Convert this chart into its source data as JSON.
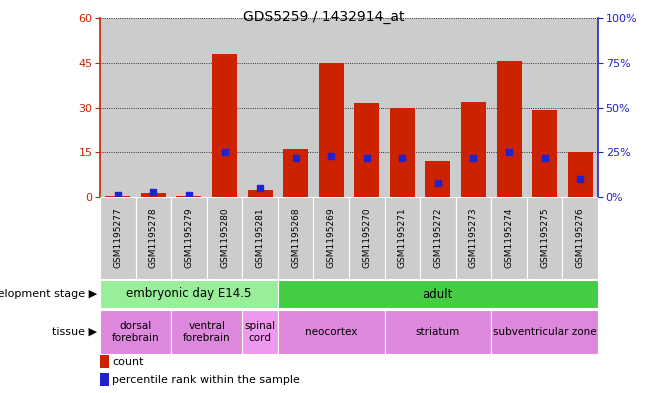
{
  "title": "GDS5259 / 1432914_at",
  "samples": [
    "GSM1195277",
    "GSM1195278",
    "GSM1195279",
    "GSM1195280",
    "GSM1195281",
    "GSM1195268",
    "GSM1195269",
    "GSM1195270",
    "GSM1195271",
    "GSM1195272",
    "GSM1195273",
    "GSM1195274",
    "GSM1195275",
    "GSM1195276"
  ],
  "count": [
    0.5,
    1.5,
    0.5,
    48,
    2.5,
    16,
    45,
    31.5,
    30,
    12,
    32,
    45.5,
    29,
    15
  ],
  "percentile": [
    1,
    3,
    1,
    25,
    5,
    22,
    23,
    22,
    22,
    8,
    22,
    25,
    22,
    10
  ],
  "left_ylim": [
    0,
    60
  ],
  "left_yticks": [
    0,
    15,
    30,
    45,
    60
  ],
  "right_ylim": [
    0,
    100
  ],
  "right_yticks": [
    0,
    25,
    50,
    75,
    100
  ],
  "bar_color": "#cc2200",
  "dot_color": "#2222cc",
  "col_bg_color": "#cccccc",
  "plot_bg": "#ffffff",
  "fig_bg": "#ffffff",
  "dev_stage_labels": [
    {
      "text": "embryonic day E14.5",
      "start": 0,
      "end": 4,
      "color": "#99ee99"
    },
    {
      "text": "adult",
      "start": 5,
      "end": 13,
      "color": "#44cc44"
    }
  ],
  "tissue_labels": [
    {
      "text": "dorsal\nforebrain",
      "start": 0,
      "end": 1,
      "color": "#dd88dd"
    },
    {
      "text": "ventral\nforebrain",
      "start": 2,
      "end": 3,
      "color": "#dd88dd"
    },
    {
      "text": "spinal\ncord",
      "start": 4,
      "end": 4,
      "color": "#ee99ee"
    },
    {
      "text": "neocortex",
      "start": 5,
      "end": 7,
      "color": "#dd88dd"
    },
    {
      "text": "striatum",
      "start": 8,
      "end": 10,
      "color": "#dd88dd"
    },
    {
      "text": "subventricular zone",
      "start": 11,
      "end": 13,
      "color": "#dd88dd"
    }
  ],
  "dev_label": "development stage",
  "tissue_label": "tissue",
  "legend_count": "count",
  "legend_pct": "percentile rank within the sample"
}
